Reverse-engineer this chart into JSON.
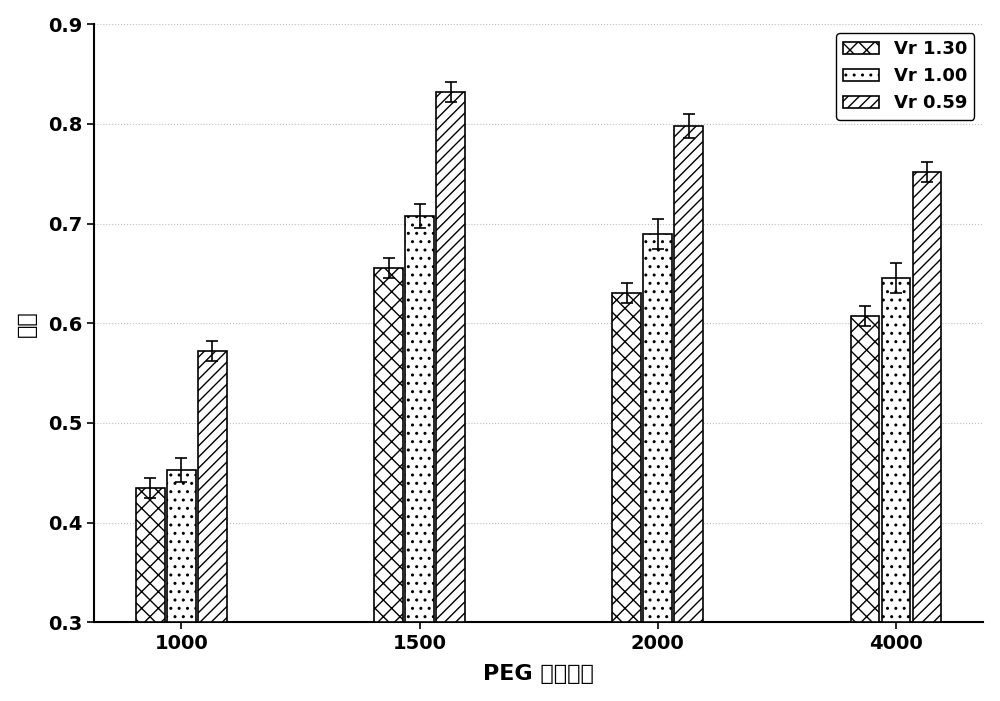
{
  "categories": [
    "1000",
    "1500",
    "2000",
    "4000"
  ],
  "series": [
    {
      "label": "Vr 1.30",
      "values": [
        0.435,
        0.655,
        0.63,
        0.607
      ],
      "errors": [
        0.01,
        0.01,
        0.01,
        0.01
      ],
      "hatch": "xx"
    },
    {
      "label": "Vr 1.00",
      "values": [
        0.453,
        0.708,
        0.69,
        0.645
      ],
      "errors": [
        0.012,
        0.012,
        0.015,
        0.015
      ],
      "hatch": ".."
    },
    {
      "label": "Vr 0.59",
      "values": [
        0.572,
        0.832,
        0.798,
        0.752
      ],
      "errors": [
        0.01,
        0.01,
        0.012,
        0.01
      ],
      "hatch": "///"
    }
  ],
  "xlabel": "PEG 分子质量",
  "ylabel": "纯度",
  "ylim": [
    0.3,
    0.9
  ],
  "yticks": [
    0.3,
    0.4,
    0.5,
    0.6,
    0.7,
    0.8,
    0.9
  ],
  "bar_width": 0.18,
  "group_positions": [
    1.0,
    2.5,
    4.0,
    5.5
  ],
  "facecolor": "white",
  "edgecolor": "black",
  "axis_fontsize": 16,
  "tick_fontsize": 14,
  "legend_fontsize": 13,
  "grid_linestyle": ":",
  "grid_color": "#b0b0b0",
  "grid_alpha": 0.8
}
